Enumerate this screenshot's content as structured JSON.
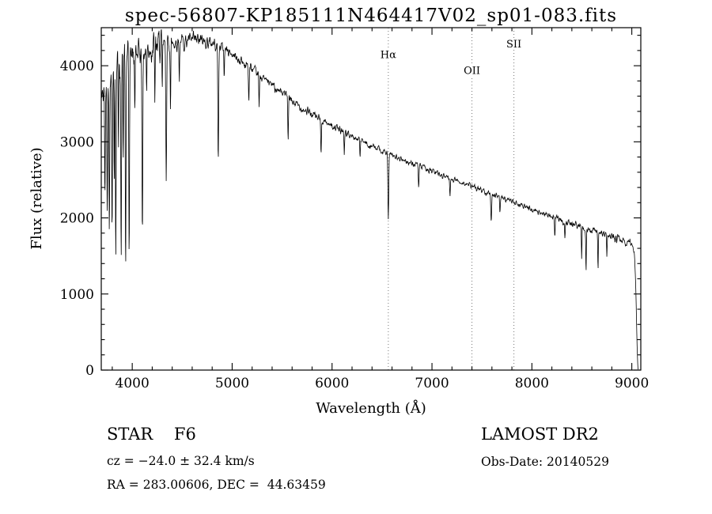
{
  "chart_data": {
    "type": "line",
    "title": "spec-56807-KP185111N464417V02_sp01-083.fits",
    "xlabel": "Wavelength (Å)",
    "ylabel": "Flux (relative)",
    "xlim": [
      3690,
      9090
    ],
    "ylim": [
      0,
      4500
    ],
    "x_ticks": [
      4000,
      5000,
      6000,
      7000,
      8000,
      9000
    ],
    "y_ticks": [
      0,
      1000,
      2000,
      3000,
      4000
    ],
    "x_minor_step": 200,
    "y_minor_step": 200,
    "grid": false,
    "line_color": "#000000",
    "marker_line_color": "#777777",
    "line_markers": [
      {
        "label": "Hα",
        "x": 6563,
        "label_flux": 4100
      },
      {
        "label": "OII",
        "x": 7400,
        "label_flux": 3890
      },
      {
        "label": "SII",
        "x": 7820,
        "label_flux": 4240
      }
    ],
    "spectrum": {
      "x_start": 3695,
      "x_end": 9062,
      "step": 3,
      "seed": 42,
      "continuum": [
        [
          3695,
          3550
        ],
        [
          3720,
          3700
        ],
        [
          3760,
          3850
        ],
        [
          3800,
          3950
        ],
        [
          3850,
          4050
        ],
        [
          3900,
          4100
        ],
        [
          4000,
          4150
        ],
        [
          4100,
          4200
        ],
        [
          4200,
          4250
        ],
        [
          4300,
          4280
        ],
        [
          4400,
          4300
        ],
        [
          4500,
          4320
        ],
        [
          4650,
          4330
        ],
        [
          4800,
          4300
        ],
        [
          4900,
          4250
        ],
        [
          5000,
          4150
        ],
        [
          5100,
          4050
        ],
        [
          5200,
          3950
        ],
        [
          5300,
          3850
        ],
        [
          5400,
          3750
        ],
        [
          5500,
          3650
        ],
        [
          5600,
          3530
        ],
        [
          5700,
          3440
        ],
        [
          5800,
          3360
        ],
        [
          5900,
          3290
        ],
        [
          6000,
          3210
        ],
        [
          6100,
          3140
        ],
        [
          6200,
          3070
        ],
        [
          6300,
          3005
        ],
        [
          6400,
          2940
        ],
        [
          6500,
          2880
        ],
        [
          6600,
          2820
        ],
        [
          6700,
          2765
        ],
        [
          6800,
          2715
        ],
        [
          6900,
          2665
        ],
        [
          7000,
          2615
        ],
        [
          7100,
          2565
        ],
        [
          7200,
          2515
        ],
        [
          7300,
          2465
        ],
        [
          7400,
          2415
        ],
        [
          7500,
          2365
        ],
        [
          7600,
          2315
        ],
        [
          7700,
          2265
        ],
        [
          7800,
          2215
        ],
        [
          7900,
          2165
        ],
        [
          8000,
          2115
        ],
        [
          8100,
          2065
        ],
        [
          8200,
          2015
        ],
        [
          8300,
          1965
        ],
        [
          8400,
          1920
        ],
        [
          8500,
          1875
        ],
        [
          8600,
          1835
        ],
        [
          8700,
          1795
        ],
        [
          8800,
          1755
        ],
        [
          8900,
          1705
        ],
        [
          9000,
          1655
        ],
        [
          9025,
          1580
        ],
        [
          9040,
          1100
        ],
        [
          9050,
          500
        ],
        [
          9058,
          120
        ],
        [
          9062,
          0
        ]
      ],
      "absorption_lines": [
        [
          3727,
          1500,
          5
        ],
        [
          3750,
          1700,
          5
        ],
        [
          3771,
          1900,
          5
        ],
        [
          3798,
          2100,
          5
        ],
        [
          3820,
          1500,
          4
        ],
        [
          3835,
          2500,
          5
        ],
        [
          3862,
          1200,
          4
        ],
        [
          3889,
          2700,
          5
        ],
        [
          3910,
          1400,
          4
        ],
        [
          3934,
          2800,
          5
        ],
        [
          3969,
          2600,
          5
        ],
        [
          4026,
          700,
          4
        ],
        [
          4102,
          2300,
          6
        ],
        [
          4144,
          600,
          4
        ],
        [
          4227,
          800,
          4
        ],
        [
          4300,
          700,
          4
        ],
        [
          4340,
          1700,
          6
        ],
        [
          4383,
          900,
          4
        ],
        [
          4471,
          500,
          4
        ],
        [
          4861,
          1500,
          6
        ],
        [
          4920,
          400,
          4
        ],
        [
          5167,
          450,
          5
        ],
        [
          5270,
          430,
          5
        ],
        [
          5560,
          520,
          5
        ],
        [
          5890,
          480,
          5
        ],
        [
          6122,
          280,
          4
        ],
        [
          6280,
          220,
          4
        ],
        [
          6563,
          860,
          6
        ],
        [
          6867,
          260,
          5
        ],
        [
          7180,
          220,
          5
        ],
        [
          7593,
          320,
          6
        ],
        [
          7680,
          200,
          5
        ],
        [
          8230,
          260,
          5
        ],
        [
          8330,
          220,
          4
        ],
        [
          8498,
          380,
          4
        ],
        [
          8542,
          560,
          4
        ],
        [
          8662,
          480,
          4
        ],
        [
          8750,
          300,
          4
        ]
      ],
      "noise_regions": [
        [
          3695,
          4300,
          300
        ],
        [
          4300,
          4700,
          160
        ],
        [
          4700,
          5200,
          110
        ],
        [
          5200,
          5900,
          85
        ],
        [
          5900,
          6500,
          65
        ],
        [
          6500,
          7300,
          55
        ],
        [
          7300,
          8200,
          52
        ],
        [
          8200,
          9000,
          75
        ],
        [
          9000,
          9062,
          60
        ]
      ]
    }
  },
  "annotations": {
    "class_label": "STAR    F6",
    "survey": "LAMOST DR2",
    "cz": "cz = −24.0 ± 32.4 km/s",
    "obs_date": "Obs-Date: 20140529",
    "coords": "RA = 283.00606, DEC =  44.63459"
  }
}
